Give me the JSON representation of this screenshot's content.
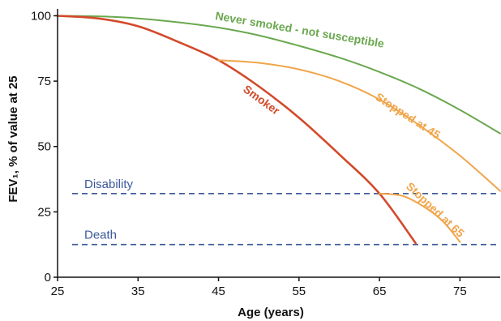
{
  "chart_data": {
    "type": "line",
    "title": "",
    "xlabel": "Age (years)",
    "ylabel": "FEV₁, % of value at 25",
    "xlim": [
      25,
      80
    ],
    "ylim": [
      0,
      102
    ],
    "x_ticks": [
      25,
      35,
      45,
      55,
      65,
      75
    ],
    "y_ticks": [
      0,
      25,
      50,
      75,
      100
    ],
    "grid": false,
    "legend": "none",
    "series": [
      {
        "name": "Never smoked - not susceptible",
        "color": "#6aa84f",
        "x": [
          25,
          30,
          35,
          40,
          45,
          50,
          55,
          60,
          65,
          70,
          75,
          80
        ],
        "y": [
          100,
          99.8,
          99,
          97.5,
          95.5,
          92.5,
          88.5,
          84,
          78.5,
          72,
          64,
          55
        ]
      },
      {
        "name": "Smoker",
        "color": "#d34a2a",
        "x": [
          25,
          30,
          35,
          40,
          45,
          50,
          55,
          60,
          65,
          69.5
        ],
        "y": [
          100,
          99,
          96,
          90,
          83,
          73,
          61,
          47,
          32,
          13
        ]
      },
      {
        "name": "Stopped at 45",
        "color": "#f0a54a",
        "x": [
          45,
          50,
          55,
          60,
          65,
          70,
          75,
          80
        ],
        "y": [
          83,
          82,
          79.5,
          75,
          68,
          58,
          46.5,
          33
        ]
      },
      {
        "name": "Stopped at 65",
        "color": "#f0a54a",
        "x": [
          65,
          68,
          71,
          73,
          75
        ],
        "y": [
          32,
          31,
          26,
          21,
          13.5
        ]
      }
    ],
    "reference_lines": [
      {
        "label": "Disability",
        "y": 32,
        "color": "#3c5a9a"
      },
      {
        "label": "Death",
        "y": 12.5,
        "color": "#3c5a9a"
      }
    ]
  }
}
